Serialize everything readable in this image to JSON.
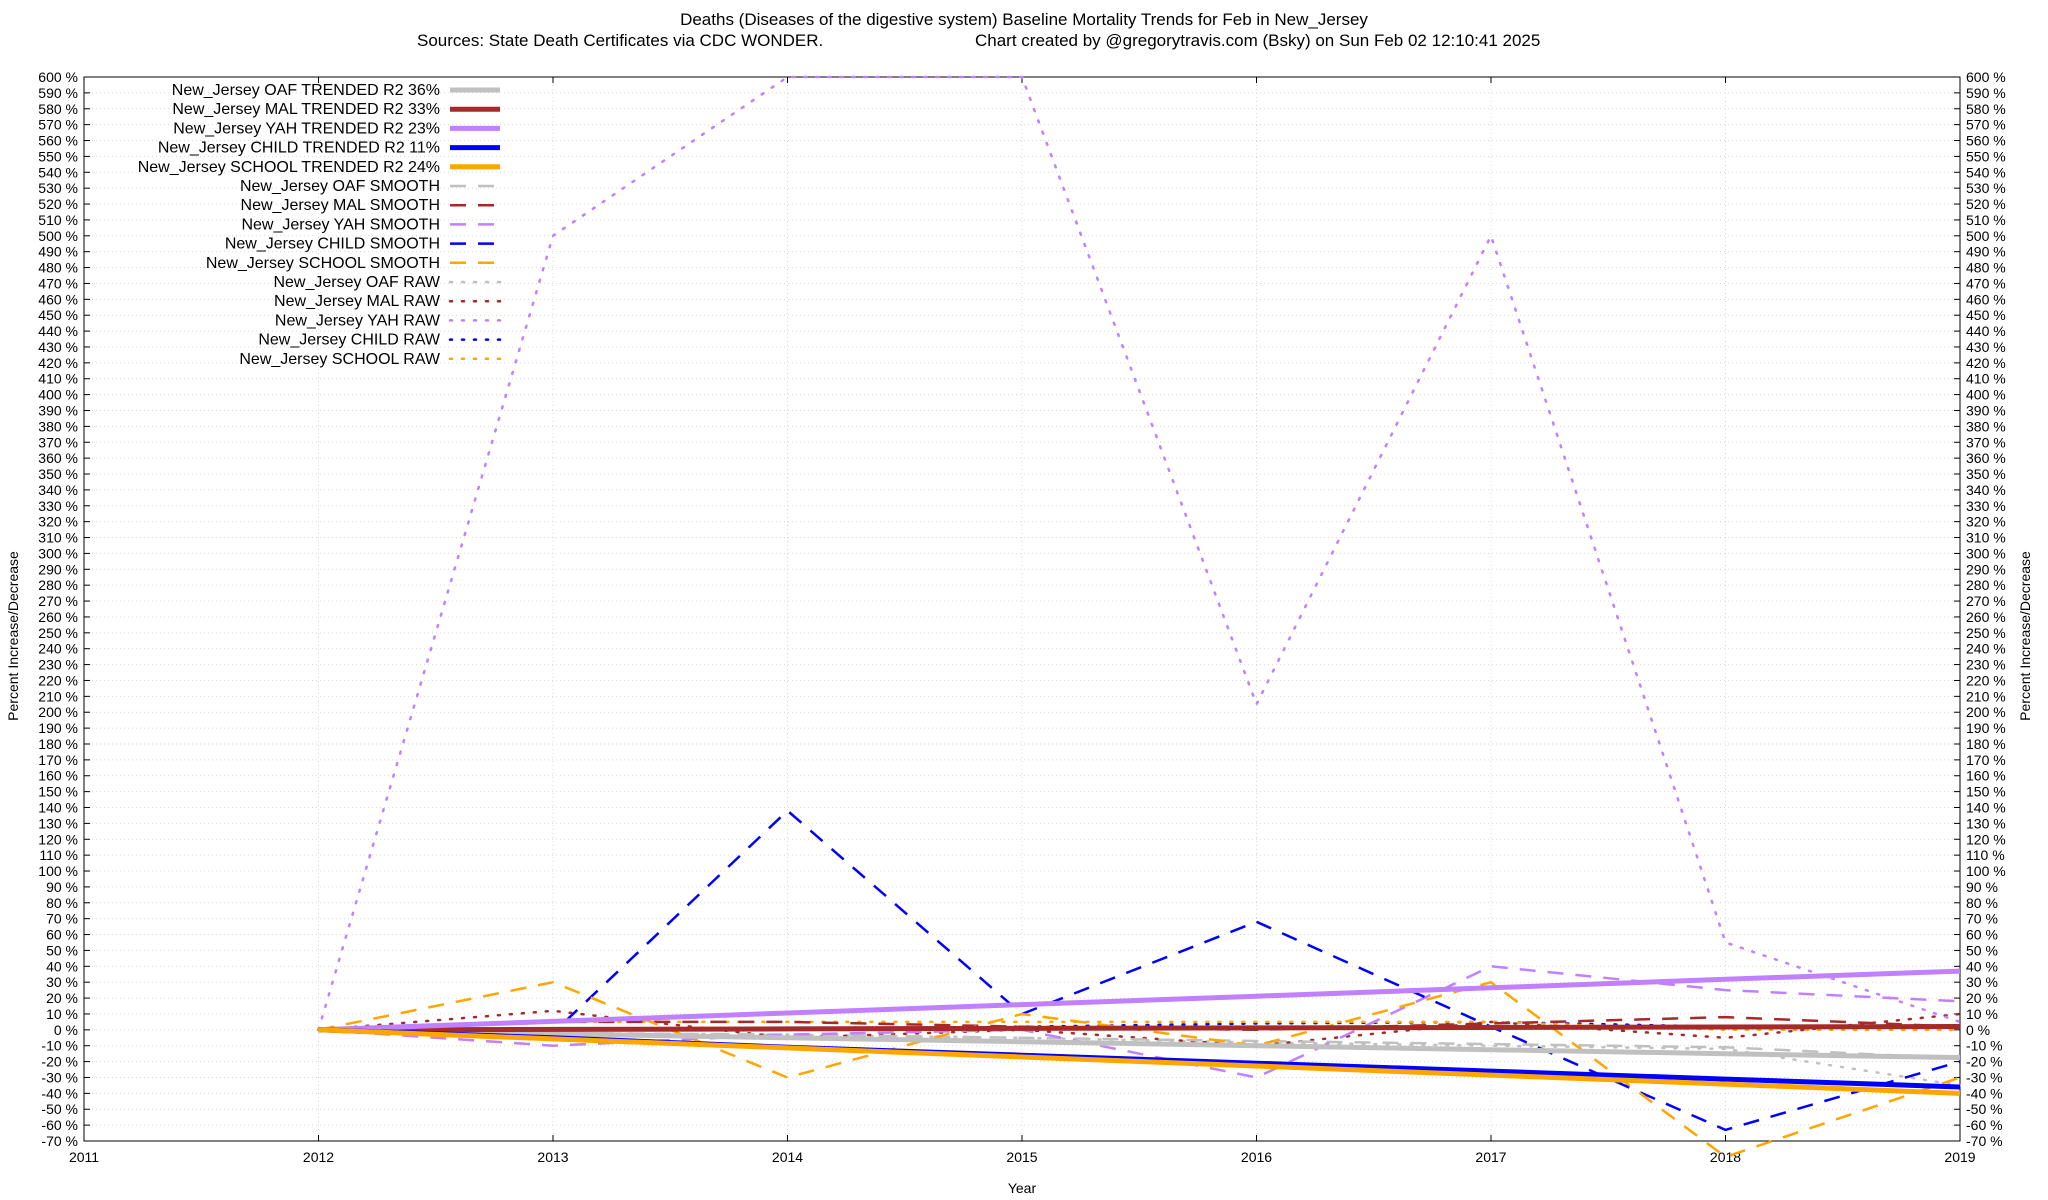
{
  "chart_data": {
    "type": "line",
    "title_line1": "Deaths (Diseases of the digestive system)  Baseline Mortality Trends for Feb in New_Jersey",
    "title_line2_left": "Sources: State Death Certificates via CDC WONDER.",
    "title_line2_right": "Chart created by @gregorytravis.com (Bsky) on Sun Feb 02 12:10:41 2025",
    "xlabel": "Year",
    "ylabel_left": "Percent Increase/Decrease",
    "ylabel_right": "Percent Increase/Decrease",
    "xlim": [
      2011,
      2019
    ],
    "ylim": [
      -70,
      600
    ],
    "x_ticks": [
      2011,
      2012,
      2013,
      2014,
      2015,
      2016,
      2017,
      2018,
      2019
    ],
    "y_tick_step": 10,
    "y_tick_suffix": " %",
    "grid": true,
    "legend_position": "top-left",
    "x": [
      2012,
      2013,
      2014,
      2015,
      2016,
      2017,
      2018,
      2019
    ],
    "series": [
      {
        "name": "New_Jersey OAF TRENDED R2  36%",
        "style": "trend",
        "color": "#c0c0c0",
        "values": [
          0,
          -2.5,
          -5,
          -7.5,
          -10,
          -12.5,
          -15,
          -17.5
        ]
      },
      {
        "name": "New_Jersey MAL TRENDED R2  33%",
        "style": "trend",
        "color": "#a52a2a",
        "values": [
          0,
          0.3,
          0.6,
          0.9,
          1.2,
          1.5,
          1.8,
          2.1
        ]
      },
      {
        "name": "New_Jersey YAH TRENDED R2  23%",
        "style": "trend",
        "color": "#c080ff",
        "values": [
          0,
          5.3,
          10.6,
          15.9,
          21.2,
          26.5,
          31.8,
          37
        ]
      },
      {
        "name": "New_Jersey CHILD TRENDED R2  11%",
        "style": "trend",
        "color": "#0000ff",
        "values": [
          0,
          -5,
          -11,
          -16,
          -21,
          -26,
          -31,
          -36
        ]
      },
      {
        "name": "New_Jersey SCHOOL TRENDED R2  24%",
        "style": "trend",
        "color": "#ffa500",
        "values": [
          0,
          -5.7,
          -11.4,
          -17.1,
          -22.8,
          -28.5,
          -34.2,
          -40
        ]
      },
      {
        "name": "New_Jersey OAF SMOOTH",
        "style": "smooth",
        "color": "#c0c0c0",
        "values": [
          0,
          -2,
          -3,
          -5,
          -7,
          -9,
          -11,
          -18
        ]
      },
      {
        "name": "New_Jersey MAL SMOOTH",
        "style": "smooth",
        "color": "#a52a2a",
        "values": [
          0,
          5,
          5,
          2,
          0,
          4,
          8,
          2
        ]
      },
      {
        "name": "New_Jersey YAH SMOOTH",
        "style": "smooth",
        "color": "#c080ff",
        "values": [
          0,
          -10,
          -3,
          0,
          -30,
          40,
          25,
          18
        ]
      },
      {
        "name": "New_Jersey CHILD SMOOTH",
        "style": "smooth",
        "color": "#0000ff",
        "values": [
          0,
          -2,
          138,
          10,
          68,
          2,
          -63,
          -20
        ]
      },
      {
        "name": "New_Jersey SCHOOL SMOOTH",
        "style": "smooth",
        "color": "#ffa500",
        "values": [
          0,
          30,
          -30,
          10,
          -10,
          30,
          -80,
          -30
        ]
      },
      {
        "name": "New_Jersey OAF RAW",
        "style": "raw",
        "color": "#c0c0c0",
        "values": [
          0,
          -2,
          -3,
          -5,
          -8,
          -10,
          -12,
          -35
        ]
      },
      {
        "name": "New_Jersey MAL RAW",
        "style": "raw",
        "color": "#a52a2a",
        "values": [
          0,
          12,
          -5,
          0,
          -10,
          5,
          -5,
          10
        ]
      },
      {
        "name": "New_Jersey YAH RAW",
        "style": "raw",
        "color": "#c080ff",
        "values": [
          0,
          500,
          600,
          600,
          205,
          500,
          55,
          5
        ]
      },
      {
        "name": "New_Jersey CHILD RAW",
        "style": "raw",
        "color": "#0000ff",
        "values": [
          0,
          0,
          0,
          2,
          4,
          5,
          2,
          0
        ]
      },
      {
        "name": "New_Jersey SCHOOL RAW",
        "style": "raw",
        "color": "#ffa500",
        "values": [
          0,
          5,
          5,
          5,
          5,
          5,
          0,
          0
        ]
      }
    ]
  }
}
